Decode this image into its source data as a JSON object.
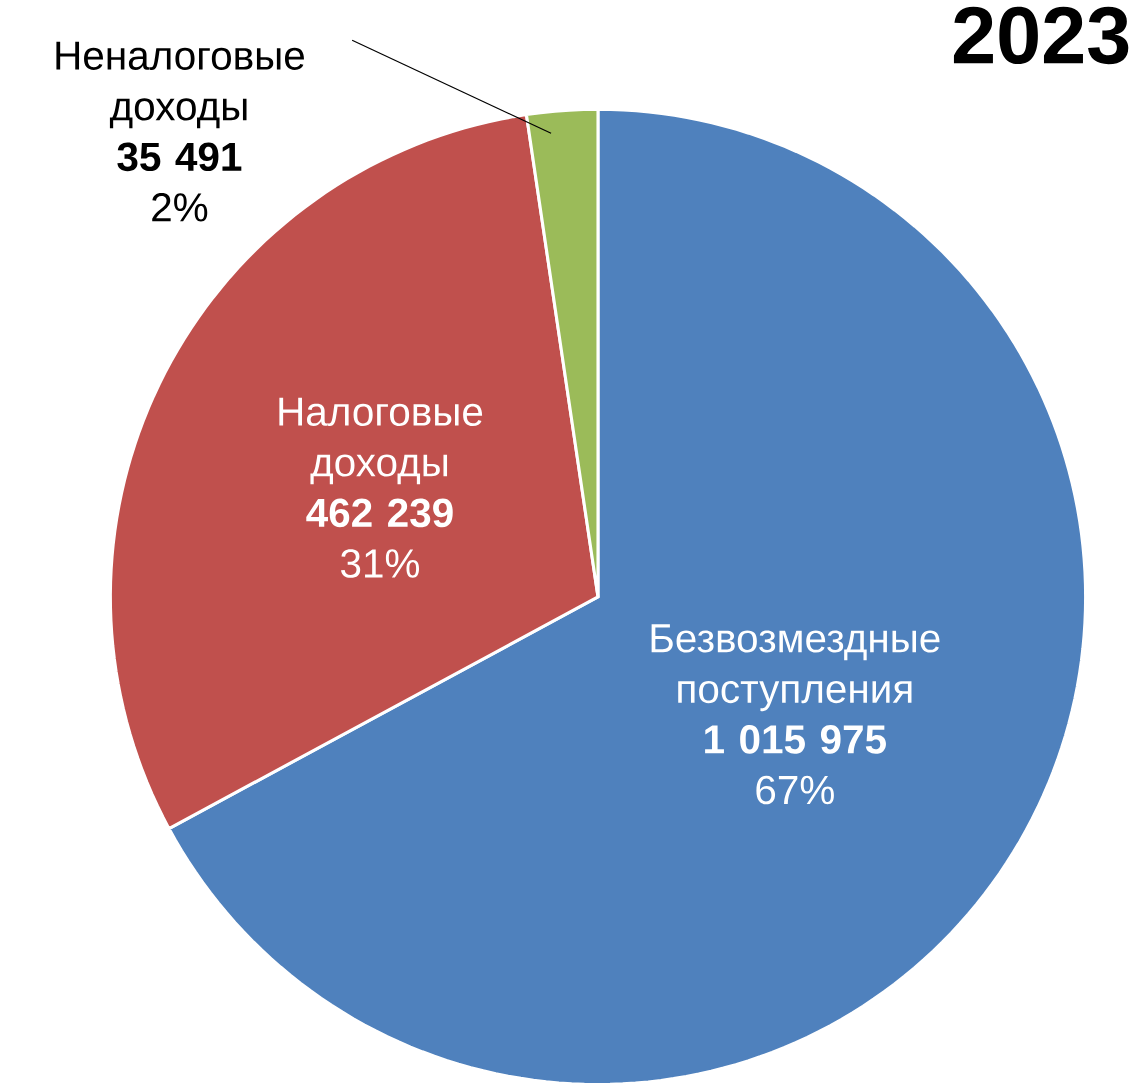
{
  "chart_data": {
    "type": "pie",
    "title": "2023",
    "categories": [
      "Безвозмездные поступления",
      "Налоговые доходы",
      "Неналоговые доходы"
    ],
    "values": [
      1015975,
      462239,
      35491
    ],
    "colors": [
      "#4f81bd",
      "#c0504d",
      "#9bbb59"
    ],
    "value_labels": [
      "1 015 975",
      "462 239",
      "35 491"
    ],
    "annotations": [
      "67%",
      "31%",
      "2%"
    ]
  }
}
